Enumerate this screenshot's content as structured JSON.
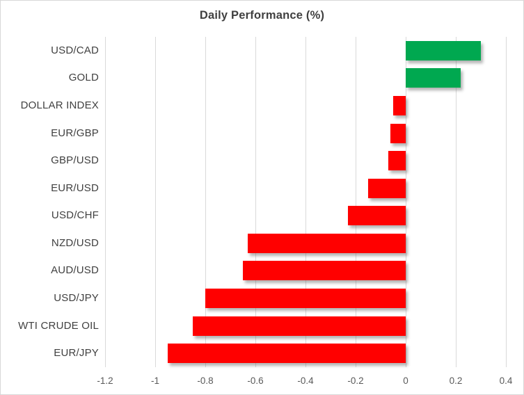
{
  "chart_data": {
    "type": "bar",
    "orientation": "horizontal",
    "title": "Daily Performance (%)",
    "categories": [
      "USD/CAD",
      "GOLD",
      "DOLLAR INDEX",
      "EUR/GBP",
      "GBP/USD",
      "EUR/USD",
      "USD/CHF",
      "NZD/USD",
      "AUD/USD",
      "USD/JPY",
      "WTI CRUDE OIL",
      "EUR/JPY"
    ],
    "values": [
      0.3,
      0.22,
      -0.05,
      -0.06,
      -0.07,
      -0.15,
      -0.23,
      -0.63,
      -0.65,
      -0.8,
      -0.85,
      -0.95
    ],
    "xlabel": "",
    "ylabel": "",
    "xlim": [
      -1.2,
      0.4
    ],
    "xticks": [
      -1.2,
      -1.0,
      -0.8,
      -0.6,
      -0.4,
      -0.2,
      0,
      0.2,
      0.4
    ],
    "xtick_labels": [
      "-1.2",
      "-1",
      "-0.8",
      "-0.6",
      "-0.4",
      "-0.2",
      "0",
      "0.2",
      "0.4"
    ],
    "grid": true,
    "legend": false,
    "colors": {
      "positive": "#00A850",
      "negative": "#FF0000",
      "gridline": "#D9D9D9",
      "title_text": "#404040",
      "category_text": "#404040",
      "tick_text": "#595959",
      "border": "#D7D7D7",
      "background": "#FFFFFF"
    }
  }
}
